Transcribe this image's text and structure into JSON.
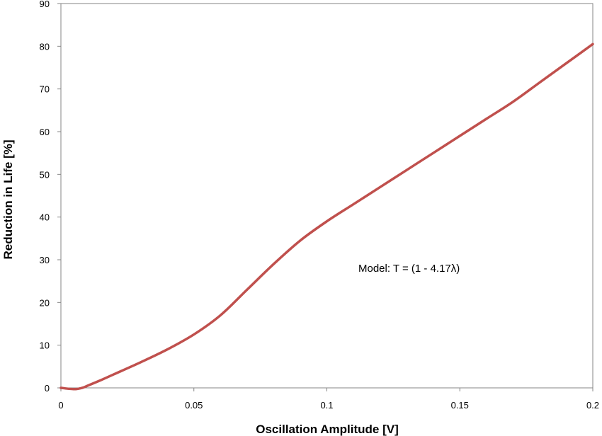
{
  "chart_data": {
    "type": "line",
    "title": "",
    "xlabel": "Oscillation Amplitude [V]",
    "ylabel": "Reduction in Life [%]",
    "xlim": [
      0,
      0.2
    ],
    "ylim": [
      0,
      90
    ],
    "x_ticks": [
      0,
      0.05,
      0.1,
      0.15,
      0.2
    ],
    "x_tick_labels": [
      "0",
      "0.05",
      "0.1",
      "0.15",
      "0.2"
    ],
    "y_ticks": [
      0,
      10,
      20,
      30,
      40,
      50,
      60,
      70,
      80,
      90
    ],
    "y_tick_labels": [
      "0",
      "10",
      "20",
      "30",
      "40",
      "50",
      "60",
      "70",
      "80",
      "90"
    ],
    "grid": false,
    "legend": "none",
    "annotation": "Model:  T = (1 - 4.17λ)",
    "series": [
      {
        "color": "#c0504d",
        "x": [
          0,
          0.005,
          0.008,
          0.01,
          0.015,
          0.02,
          0.03,
          0.04,
          0.05,
          0.06,
          0.07,
          0.08,
          0.09,
          0.1,
          0.11,
          0.12,
          0.13,
          0.14,
          0.15,
          0.16,
          0.17,
          0.18,
          0.19,
          0.2
        ],
        "y": [
          0,
          -0.3,
          0,
          0.5,
          1.8,
          3.2,
          6.0,
          9.0,
          12.5,
          17.0,
          23.0,
          29.0,
          34.5,
          39.0,
          43.0,
          47.0,
          51.0,
          55.0,
          59.0,
          63.0,
          67.0,
          71.5,
          76.0,
          80.5
        ]
      }
    ]
  }
}
